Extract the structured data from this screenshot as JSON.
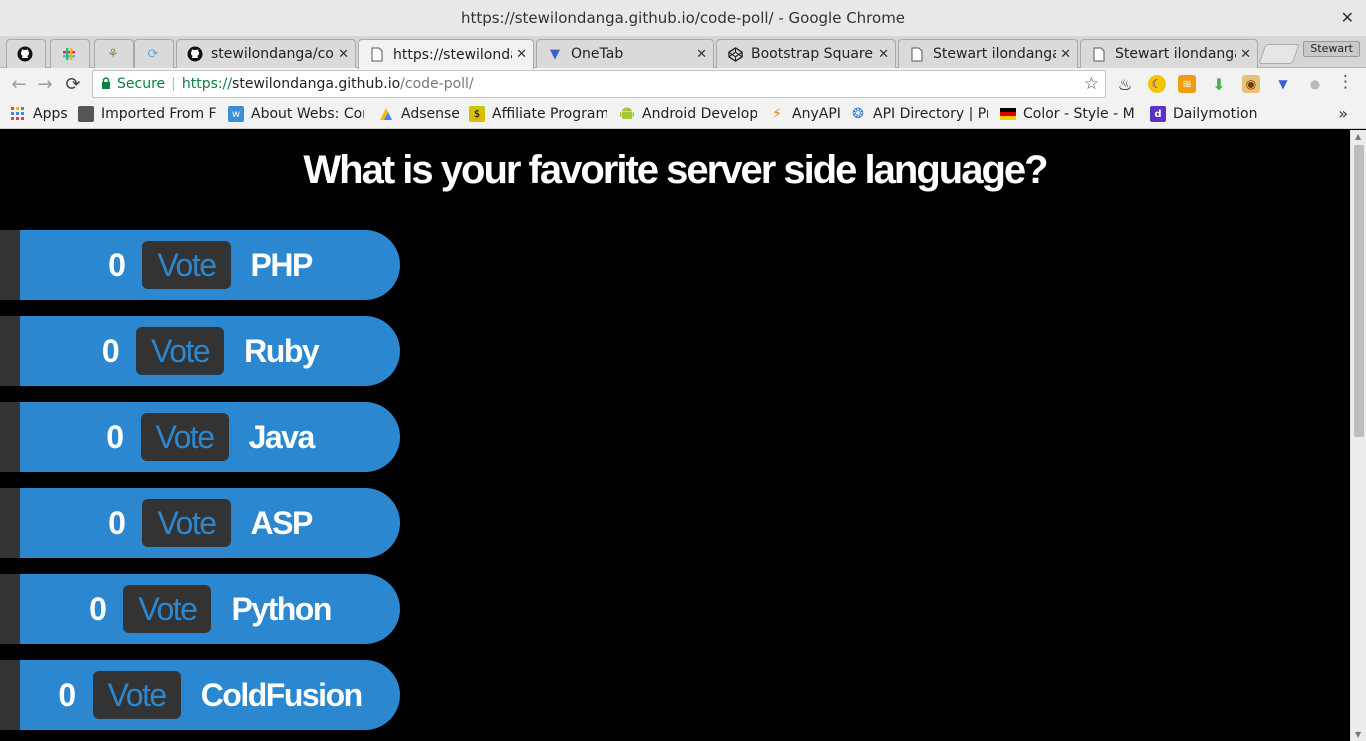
{
  "window": {
    "title": "https://stewilondanga.github.io/code-poll/ - Google Chrome",
    "close_label": "✕"
  },
  "tabs": [
    {
      "label": "",
      "icon": "github-icon"
    },
    {
      "label": "",
      "icon": "slack-icon"
    },
    {
      "label": "",
      "icon": "plant-icon"
    },
    {
      "label": "",
      "icon": "refresh-icon"
    },
    {
      "label": "stewilondanga/cod",
      "icon": "github-icon"
    },
    {
      "label": "https://stewilonda",
      "icon": "page-icon",
      "active": true
    },
    {
      "label": "OneTab",
      "icon": "onetab-icon"
    },
    {
      "label": "Bootstrap Square",
      "icon": "codepen-icon"
    },
    {
      "label": "Stewart ilondanga",
      "icon": "page-icon"
    },
    {
      "label": "Stewart ilondanga",
      "icon": "page-icon"
    }
  ],
  "profile": {
    "label": "Stewart"
  },
  "toolbar": {
    "secure_label": "Secure",
    "url_scheme": "https://",
    "url_host": "stewilondanga.github.io",
    "url_path": "/code-poll/"
  },
  "bookmarks": [
    {
      "label": "Apps",
      "icon": "apps-grid-icon"
    },
    {
      "label": "Imported From Fi",
      "icon": "folder-icon"
    },
    {
      "label": "About Webs: Cor",
      "icon": "webs-icon"
    },
    {
      "label": "Adsense",
      "icon": "adsense-icon"
    },
    {
      "label": "Affiliate Programs",
      "icon": "affiliate-icon"
    },
    {
      "label": "Android Develope",
      "icon": "android-icon"
    },
    {
      "label": "AnyAPI",
      "icon": "bolt-icon"
    },
    {
      "label": "API Directory | Pr",
      "icon": "puzzle-icon"
    },
    {
      "label": "Color - Style - M",
      "icon": "flag-icon"
    },
    {
      "label": "Dailymotion",
      "icon": "dailymotion-icon"
    }
  ],
  "bookmarks_more": "»",
  "poll": {
    "question": "What is your favorite server side language?",
    "vote_label": "Vote",
    "options": [
      {
        "count": "0",
        "language": "PHP"
      },
      {
        "count": "0",
        "language": "Ruby"
      },
      {
        "count": "0",
        "language": "Java"
      },
      {
        "count": "0",
        "language": "ASP"
      },
      {
        "count": "0",
        "language": "Python"
      },
      {
        "count": "0",
        "language": "ColdFusion"
      }
    ]
  },
  "colors": {
    "accent_blue": "#2b88d0",
    "dark_gray": "#333333",
    "background": "#000000"
  }
}
